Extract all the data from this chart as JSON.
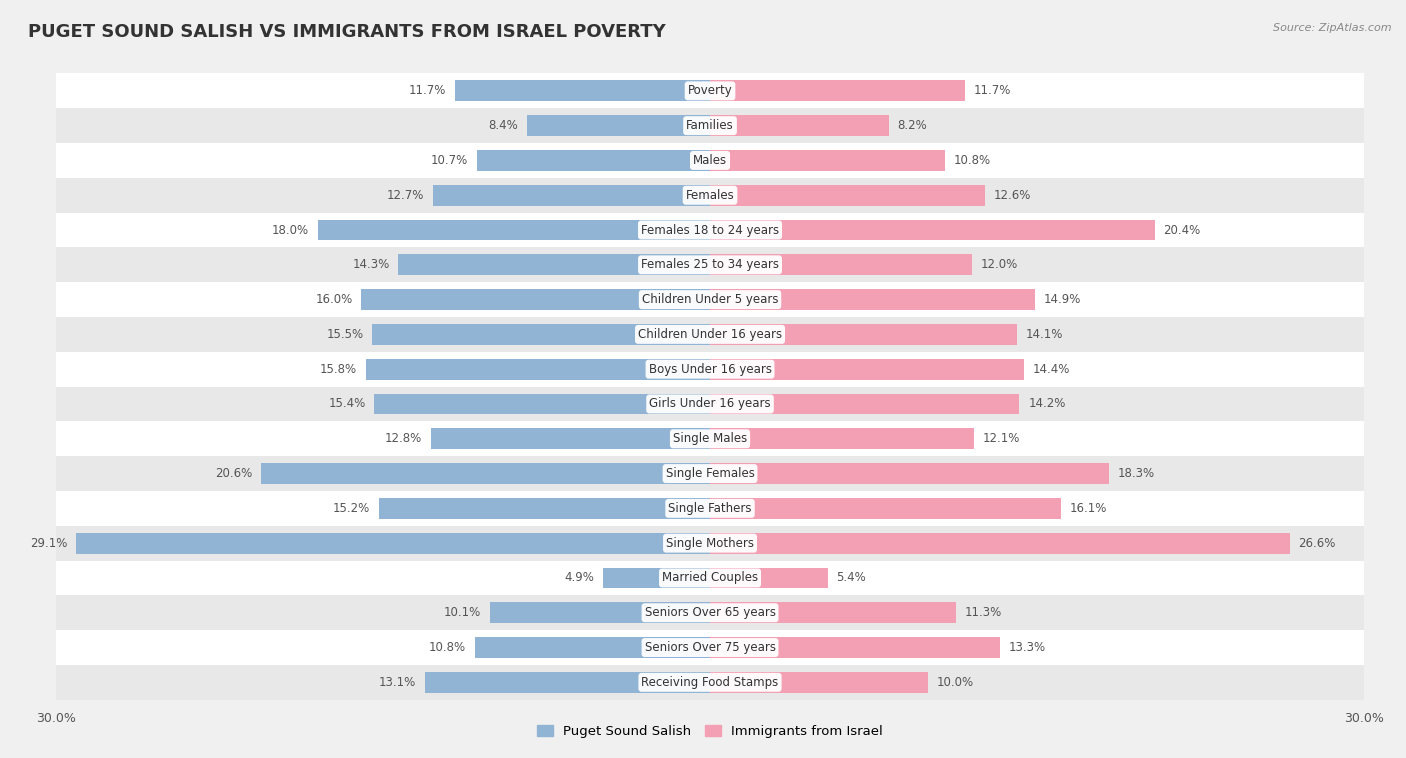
{
  "title": "PUGET SOUND SALISH VS IMMIGRANTS FROM ISRAEL POVERTY",
  "source": "Source: ZipAtlas.com",
  "categories": [
    "Poverty",
    "Families",
    "Males",
    "Females",
    "Females 18 to 24 years",
    "Females 25 to 34 years",
    "Children Under 5 years",
    "Children Under 16 years",
    "Boys Under 16 years",
    "Girls Under 16 years",
    "Single Males",
    "Single Females",
    "Single Fathers",
    "Single Mothers",
    "Married Couples",
    "Seniors Over 65 years",
    "Seniors Over 75 years",
    "Receiving Food Stamps"
  ],
  "left_values": [
    11.7,
    8.4,
    10.7,
    12.7,
    18.0,
    14.3,
    16.0,
    15.5,
    15.8,
    15.4,
    12.8,
    20.6,
    15.2,
    29.1,
    4.9,
    10.1,
    10.8,
    13.1
  ],
  "right_values": [
    11.7,
    8.2,
    10.8,
    12.6,
    20.4,
    12.0,
    14.9,
    14.1,
    14.4,
    14.2,
    12.1,
    18.3,
    16.1,
    26.6,
    5.4,
    11.3,
    13.3,
    10.0
  ],
  "left_color": "#92b4d4",
  "right_color": "#f4a0b4",
  "left_label": "Puget Sound Salish",
  "right_label": "Immigrants from Israel",
  "xlim": 30.0,
  "background_color": "#f0f0f0",
  "row_color_even": "#ffffff",
  "row_color_odd": "#e8e8e8",
  "title_fontsize": 13,
  "label_fontsize": 8.5,
  "value_fontsize": 8.5
}
